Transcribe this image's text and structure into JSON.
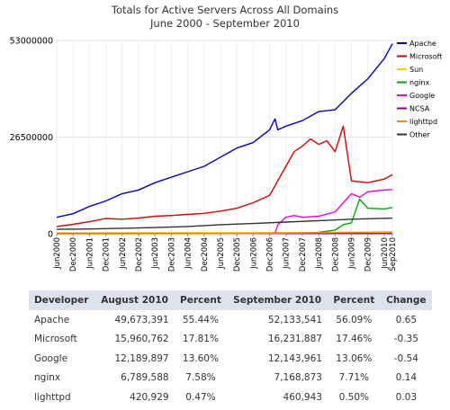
{
  "chart_data": {
    "type": "line",
    "title": "Totals for Active Servers Across All Domains",
    "subtitle": "June 2000 - September 2010",
    "ylim": [
      0,
      53000000
    ],
    "y_ticks": [
      {
        "value": 0,
        "label": "0"
      },
      {
        "value": 26500000,
        "label": "26500000"
      },
      {
        "value": 53000000,
        "label": "53000000"
      }
    ],
    "x_range": [
      "2000-06",
      "2010-09"
    ],
    "x_ticks": [
      "Jun2000",
      "Dec2000",
      "Jun2001",
      "Dec2001",
      "Jun2002",
      "Dec2002",
      "Jun2003",
      "Dec2003",
      "Jun2004",
      "Dec2004",
      "Jun2005",
      "Dec2005",
      "Jun2006",
      "Dec2006",
      "Jun2007",
      "Dec2007",
      "Jun2008",
      "Dec2008",
      "Jun2009",
      "Dec2009",
      "Jun2010",
      "Sep2010"
    ],
    "legend_position": "right",
    "series": [
      {
        "name": "Apache",
        "color": "#0000cc",
        "points": [
          [
            "2000-06",
            4500000
          ],
          [
            "2000-12",
            5500000
          ],
          [
            "2001-06",
            7500000
          ],
          [
            "2001-12",
            9000000
          ],
          [
            "2002-06",
            11000000
          ],
          [
            "2002-12",
            12000000
          ],
          [
            "2003-06",
            14000000
          ],
          [
            "2003-12",
            15500000
          ],
          [
            "2004-06",
            17000000
          ],
          [
            "2004-12",
            18500000
          ],
          [
            "2005-06",
            21000000
          ],
          [
            "2005-12",
            23500000
          ],
          [
            "2006-06",
            25000000
          ],
          [
            "2006-12",
            28500000
          ],
          [
            "2007-02",
            31500000
          ],
          [
            "2007-03",
            28500000
          ],
          [
            "2007-06",
            29500000
          ],
          [
            "2007-12",
            31000000
          ],
          [
            "2008-06",
            33500000
          ],
          [
            "2008-12",
            34000000
          ],
          [
            "2009-06",
            38500000
          ],
          [
            "2009-12",
            42500000
          ],
          [
            "2010-06",
            48000000
          ],
          [
            "2010-09",
            52100000
          ]
        ]
      },
      {
        "name": "Microsoft",
        "color": "#dd0000",
        "points": [
          [
            "2000-06",
            2000000
          ],
          [
            "2000-12",
            2600000
          ],
          [
            "2001-06",
            3300000
          ],
          [
            "2001-12",
            4200000
          ],
          [
            "2002-06",
            4000000
          ],
          [
            "2002-12",
            4300000
          ],
          [
            "2003-06",
            4800000
          ],
          [
            "2003-12",
            5000000
          ],
          [
            "2004-06",
            5300000
          ],
          [
            "2004-12",
            5600000
          ],
          [
            "2005-06",
            6200000
          ],
          [
            "2005-12",
            7000000
          ],
          [
            "2006-06",
            8500000
          ],
          [
            "2006-12",
            10500000
          ],
          [
            "2007-03",
            14500000
          ],
          [
            "2007-06",
            18500000
          ],
          [
            "2007-09",
            22500000
          ],
          [
            "2007-12",
            24000000
          ],
          [
            "2008-03",
            26000000
          ],
          [
            "2008-06",
            24500000
          ],
          [
            "2008-09",
            25500000
          ],
          [
            "2008-12",
            22500000
          ],
          [
            "2009-03",
            29500000
          ],
          [
            "2009-06",
            14500000
          ],
          [
            "2009-12",
            14000000
          ],
          [
            "2010-06",
            15000000
          ],
          [
            "2010-09",
            16200000
          ]
        ]
      },
      {
        "name": "Sun",
        "color": "#ffcc00",
        "points": [
          [
            "2000-06",
            200000
          ],
          [
            "2003-06",
            250000
          ],
          [
            "2006-06",
            300000
          ],
          [
            "2008-06",
            350000
          ],
          [
            "2010-09",
            300000
          ]
        ]
      },
      {
        "name": "nginx",
        "color": "#00aa00",
        "points": [
          [
            "2007-06",
            0
          ],
          [
            "2008-06",
            400000
          ],
          [
            "2008-12",
            1000000
          ],
          [
            "2009-03",
            2500000
          ],
          [
            "2009-06",
            3000000
          ],
          [
            "2009-09",
            9500000
          ],
          [
            "2009-12",
            7000000
          ],
          [
            "2010-06",
            6800000
          ],
          [
            "2010-09",
            7200000
          ]
        ]
      },
      {
        "name": "Google",
        "color": "#ee00ee",
        "points": [
          [
            "2007-02",
            0
          ],
          [
            "2007-03",
            2500000
          ],
          [
            "2007-06",
            4500000
          ],
          [
            "2007-09",
            5000000
          ],
          [
            "2007-12",
            4500000
          ],
          [
            "2008-06",
            4800000
          ],
          [
            "2008-12",
            6000000
          ],
          [
            "2009-03",
            8500000
          ],
          [
            "2009-06",
            11000000
          ],
          [
            "2009-09",
            10000000
          ],
          [
            "2009-12",
            11500000
          ],
          [
            "2010-06",
            12000000
          ],
          [
            "2010-09",
            12100000
          ]
        ]
      },
      {
        "name": "NCSA",
        "color": "#880088",
        "points": [
          [
            "2000-06",
            100000
          ],
          [
            "2005-06",
            80000
          ],
          [
            "2010-09",
            50000
          ]
        ]
      },
      {
        "name": "lighttpd",
        "color": "#ff8800",
        "points": [
          [
            "2000-06",
            0
          ],
          [
            "2005-06",
            50000
          ],
          [
            "2007-06",
            200000
          ],
          [
            "2008-06",
            300000
          ],
          [
            "2009-06",
            400000
          ],
          [
            "2010-09",
            460000
          ]
        ]
      },
      {
        "name": "Other",
        "color": "#333333",
        "points": [
          [
            "2000-06",
            1200000
          ],
          [
            "2001-06",
            1300000
          ],
          [
            "2002-06",
            1500000
          ],
          [
            "2003-06",
            1700000
          ],
          [
            "2004-06",
            2000000
          ],
          [
            "2005-06",
            2500000
          ],
          [
            "2006-06",
            2800000
          ],
          [
            "2007-06",
            3200000
          ],
          [
            "2008-06",
            3600000
          ],
          [
            "2009-06",
            4000000
          ],
          [
            "2010-09",
            4300000
          ]
        ]
      }
    ]
  },
  "table": {
    "headers": [
      "Developer",
      "August 2010",
      "Percent",
      "September 2010",
      "Percent",
      "Change"
    ],
    "rows": [
      [
        "Apache",
        "49,673,391",
        "55.44%",
        "52,133,541",
        "56.09%",
        "0.65"
      ],
      [
        "Microsoft",
        "15,960,762",
        "17.81%",
        "16,231,887",
        "17.46%",
        "-0.35"
      ],
      [
        "Google",
        "12,189,897",
        "13.60%",
        "12,143,961",
        "13.06%",
        "-0.54"
      ],
      [
        "nginx",
        "6,789,588",
        "7.58%",
        "7,168,873",
        "7.71%",
        "0.14"
      ],
      [
        "lighttpd",
        "420,929",
        "0.47%",
        "460,943",
        "0.50%",
        "0.03"
      ]
    ]
  }
}
